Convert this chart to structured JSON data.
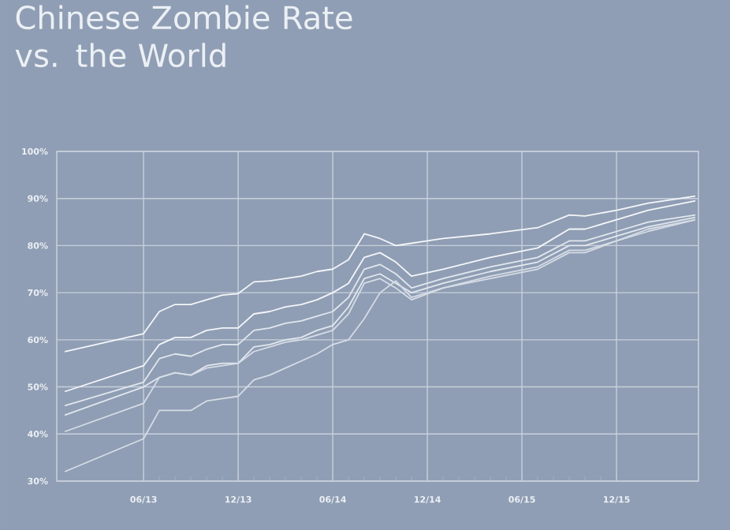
{
  "chart_data": {
    "type": "line",
    "title": "Chinese Zombie Rate vs. the World",
    "x": [
      "2013-01",
      "2013-06",
      "2013-07",
      "2013-08",
      "2013-09",
      "2013-10",
      "2013-11",
      "2013-12",
      "2014-01",
      "2014-02",
      "2014-03",
      "2014-04",
      "2014-05",
      "2014-06",
      "2014-07",
      "2014-08",
      "2014-09",
      "2014-10",
      "2014-11",
      "2015-01",
      "2015-04",
      "2015-07",
      "2015-09",
      "2015-10",
      "2015-12",
      "2016-02",
      "2016-05"
    ],
    "series": [
      {
        "color": "#f4f6f9",
        "values": [
          57.5,
          61.3,
          66,
          67.5,
          67.5,
          68.5,
          69.5,
          69.8,
          72.3,
          72.5,
          73,
          73.5,
          74.5,
          75,
          77,
          82.5,
          81.5,
          80,
          80.5,
          81.5,
          82.5,
          83.8,
          86.5,
          86.3,
          87.5,
          89,
          90.5
        ]
      },
      {
        "color": "#f4f6f9",
        "values": [
          49,
          54.5,
          59,
          60.5,
          60.5,
          62,
          62.5,
          62.5,
          65.5,
          66,
          67,
          67.5,
          68.5,
          70,
          72,
          77.5,
          78.5,
          76.5,
          73.5,
          75,
          77.5,
          79.5,
          83.5,
          83.5,
          85.5,
          87.5,
          89.5
        ]
      },
      {
        "color": "#e2e7ee",
        "values": [
          46,
          51,
          56,
          57,
          56.5,
          58,
          59,
          59,
          62,
          62.5,
          63.5,
          64,
          65,
          66,
          69,
          75,
          76,
          74,
          71,
          73,
          75.5,
          77.5,
          81,
          81,
          83,
          85,
          86.5
        ]
      },
      {
        "color": "#e2e7ee",
        "values": [
          44,
          50,
          52,
          53,
          52.5,
          54.5,
          55,
          55,
          58.5,
          59,
          60,
          60.5,
          62,
          63,
          67,
          73,
          74,
          72,
          70,
          72,
          74.5,
          76.5,
          80,
          80,
          82,
          84,
          86
        ]
      },
      {
        "color": "#d6dce6",
        "values": [
          40.5,
          46.5,
          52,
          53,
          52.5,
          54,
          54.5,
          55,
          57.5,
          58.5,
          59.5,
          60,
          61,
          62,
          65.5,
          72,
          73,
          71,
          68.5,
          71,
          73.5,
          75.5,
          79,
          79,
          81,
          83.5,
          85.5
        ]
      },
      {
        "color": "#d6dce6",
        "values": [
          32,
          39,
          45,
          45,
          45,
          47,
          47.5,
          48,
          51.5,
          52.5,
          54,
          55.5,
          57,
          59,
          60,
          64.5,
          70,
          72.5,
          69,
          71,
          73,
          75,
          78.5,
          78.5,
          81,
          83,
          85.5
        ]
      }
    ],
    "xlim": [
      "2012-12-16",
      "2016-05-07"
    ],
    "xticks": [
      {
        "value": "2013-06",
        "label": "06/13"
      },
      {
        "value": "2013-12",
        "label": "12/13"
      },
      {
        "value": "2014-06",
        "label": "06/14"
      },
      {
        "value": "2014-12",
        "label": "12/14"
      },
      {
        "value": "2015-06",
        "label": "06/15"
      },
      {
        "value": "2015-12",
        "label": "12/15"
      }
    ],
    "ylim": [
      30,
      100
    ],
    "yticks": [
      {
        "value": 30,
        "label": "30%"
      },
      {
        "value": 40,
        "label": "40%"
      },
      {
        "value": 50,
        "label": "50%"
      },
      {
        "value": 60,
        "label": "60%"
      },
      {
        "value": 70,
        "label": "70%"
      },
      {
        "value": 80,
        "label": "80%"
      },
      {
        "value": 90,
        "label": "90%"
      },
      {
        "value": 100,
        "label": "100%"
      }
    ],
    "grid": true,
    "marker": "none",
    "line_style": "solid"
  }
}
